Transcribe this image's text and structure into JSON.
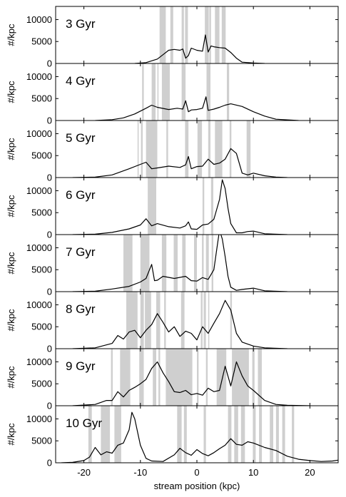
{
  "chart_data": [
    {
      "type": "line",
      "label": "3 Gyr",
      "ylabel": "#/kpc",
      "xlim": [
        -25,
        25
      ],
      "ylim": [
        0,
        13000
      ],
      "yticks": [
        0,
        5000,
        10000
      ],
      "shaded_bands": [
        [
          -6.6,
          -5.5
        ],
        [
          -4.7,
          -4.2
        ],
        [
          -2.7,
          -2.3
        ],
        [
          -2.1,
          -1.6
        ],
        [
          1.4,
          2.1
        ],
        [
          2.2,
          2.5
        ],
        [
          3.2,
          4.0
        ],
        [
          4.4,
          5.1
        ]
      ],
      "x": [
        -11,
        -9,
        -7,
        -6,
        -5,
        -4,
        -3,
        -2.5,
        -2,
        -1.5,
        -1,
        0,
        1,
        1.5,
        2,
        2.5,
        3,
        4,
        5,
        6,
        7,
        8,
        10,
        12
      ],
      "y": [
        0,
        200,
        1000,
        2000,
        3000,
        3200,
        3000,
        3300,
        1200,
        1800,
        3500,
        3000,
        2800,
        6500,
        2600,
        4000,
        3800,
        3600,
        3500,
        2500,
        1200,
        300,
        100,
        0
      ]
    },
    {
      "type": "line",
      "label": "4 Gyr",
      "ylabel": "#/kpc",
      "xlim": [
        -25,
        25
      ],
      "ylim": [
        0,
        13000
      ],
      "yticks": [
        0,
        5000,
        10000
      ],
      "shaded_bands": [
        [
          -9.7,
          -9.4
        ],
        [
          -8.0,
          -7.3
        ],
        [
          -7.0,
          -6.8
        ],
        [
          -6.2,
          -4.8
        ],
        [
          -2.7,
          -2.0
        ],
        [
          1.7,
          2.4
        ],
        [
          5.3,
          5.7
        ]
      ],
      "x": [
        -18,
        -15,
        -13,
        -11,
        -9,
        -8,
        -7,
        -5,
        -3.5,
        -2.5,
        -2,
        -1.5,
        -1,
        0,
        1,
        1.6,
        2,
        3,
        4,
        5,
        6,
        8,
        10,
        12,
        14,
        18
      ],
      "y": [
        0,
        200,
        600,
        1500,
        2800,
        3500,
        3000,
        2500,
        2800,
        2600,
        4500,
        2000,
        2400,
        2500,
        2800,
        5400,
        2300,
        2600,
        3000,
        3500,
        3800,
        3200,
        2000,
        1000,
        300,
        0
      ]
    },
    {
      "type": "line",
      "label": "5 Gyr",
      "ylabel": "#/kpc",
      "xlim": [
        -25,
        25
      ],
      "ylim": [
        0,
        13000
      ],
      "yticks": [
        0,
        5000,
        10000
      ],
      "shaded_bands": [
        [
          -10.5,
          -10.3
        ],
        [
          -9.9,
          -9.6
        ],
        [
          -9.0,
          -7.0
        ],
        [
          -5.4,
          -5.1
        ],
        [
          -2.1,
          -1.5
        ],
        [
          0.1,
          0.9
        ],
        [
          2.0,
          2.4
        ],
        [
          3.2,
          4.5
        ],
        [
          5.8,
          6.1
        ],
        [
          8.8,
          9.5
        ]
      ],
      "x": [
        -22,
        -18,
        -15,
        -12,
        -10,
        -9,
        -8,
        -7,
        -5,
        -3,
        -2,
        -1.5,
        -1,
        0,
        1,
        2,
        3,
        4,
        5,
        6,
        7,
        8,
        9,
        10,
        12,
        14,
        16
      ],
      "y": [
        0,
        100,
        600,
        2000,
        3000,
        3500,
        2000,
        2200,
        2600,
        2300,
        2900,
        4800,
        2000,
        2500,
        2600,
        4200,
        3000,
        3300,
        4200,
        6600,
        5500,
        1000,
        600,
        1000,
        400,
        100,
        0
      ]
    },
    {
      "type": "line",
      "label": "6 Gyr",
      "ylabel": "#/kpc",
      "xlim": [
        -25,
        25
      ],
      "ylim": [
        0,
        13000
      ],
      "yticks": [
        0,
        5000,
        10000
      ],
      "shaded_bands": [
        [
          -8.7,
          -7.2
        ],
        [
          1.0,
          1.3
        ],
        [
          2.5,
          2.9
        ]
      ],
      "x": [
        -22,
        -18,
        -15,
        -12,
        -10,
        -9,
        -8,
        -7,
        -5,
        -3,
        -2,
        -1.5,
        -1,
        0,
        1,
        2,
        3,
        4,
        4.5,
        5,
        5.5,
        6,
        7,
        8,
        9,
        10,
        12,
        16
      ],
      "y": [
        0,
        100,
        500,
        1300,
        2200,
        3600,
        2000,
        2500,
        1800,
        1500,
        2000,
        2900,
        1300,
        1200,
        2200,
        2400,
        3500,
        8000,
        12500,
        10500,
        6000,
        2500,
        400,
        400,
        700,
        800,
        200,
        0
      ]
    },
    {
      "type": "line",
      "label": "7 Gyr",
      "ylabel": "#/kpc",
      "xlim": [
        -25,
        25
      ],
      "ylim": [
        0,
        13000
      ],
      "yticks": [
        0,
        5000,
        10000
      ],
      "shaded_bands": [
        [
          -13.0,
          -11.4
        ],
        [
          -10.0,
          -8.4
        ],
        [
          -6.2,
          -5.4
        ],
        [
          -4.1,
          -3.4
        ],
        [
          -2.6,
          -2.0
        ],
        [
          -0.5,
          0.0
        ],
        [
          0.9,
          1.2
        ],
        [
          1.6,
          2.1
        ],
        [
          2.6,
          2.9
        ]
      ],
      "x": [
        -22,
        -18,
        -15,
        -12,
        -10,
        -9,
        -8,
        -7.5,
        -7,
        -6,
        -4,
        -2,
        -1,
        0,
        1,
        2,
        3,
        3.5,
        4,
        4.5,
        5,
        5.5,
        6,
        7,
        8,
        10,
        12,
        16
      ],
      "y": [
        0,
        100,
        600,
        1200,
        2200,
        3000,
        6200,
        2500,
        2600,
        3500,
        3000,
        3500,
        2500,
        2400,
        3200,
        2800,
        5000,
        9500,
        14000,
        12000,
        8000,
        3500,
        1000,
        300,
        500,
        800,
        200,
        0
      ]
    },
    {
      "type": "line",
      "label": "8 Gyr",
      "ylabel": "#/kpc",
      "xlim": [
        -25,
        25
      ],
      "ylim": [
        0,
        13000
      ],
      "yticks": [
        0,
        5000,
        10000
      ],
      "shaded_bands": [
        [
          -12.5,
          -10.5
        ],
        [
          -10.0,
          -9.4
        ],
        [
          -9.2,
          -8.1
        ],
        [
          -7.2,
          -6.5
        ],
        [
          -5.8,
          -5.5
        ],
        [
          -2.8,
          -2.2
        ],
        [
          0.7,
          1.0
        ],
        [
          1.2,
          1.6
        ],
        [
          2.0,
          2.2
        ],
        [
          5.9,
          6.2
        ]
      ],
      "x": [
        -22,
        -18,
        -15,
        -14,
        -13,
        -12,
        -11,
        -10,
        -9,
        -8,
        -7,
        -6,
        -5,
        -4,
        -3,
        -2,
        -1,
        0,
        1,
        2,
        3,
        4,
        5,
        6,
        7,
        8,
        10,
        12,
        16
      ],
      "y": [
        0,
        200,
        1200,
        3000,
        2200,
        3800,
        4200,
        2500,
        4200,
        5500,
        8000,
        6000,
        3800,
        5000,
        2800,
        4000,
        3500,
        2000,
        5000,
        3500,
        5800,
        8000,
        11000,
        8800,
        3500,
        1500,
        600,
        200,
        0
      ]
    },
    {
      "type": "line",
      "label": "9 Gyr",
      "ylabel": "#/kpc",
      "xlim": [
        -25,
        25
      ],
      "ylim": [
        0,
        13000
      ],
      "yticks": [
        0,
        5000,
        10000
      ],
      "shaded_bands": [
        [
          -15.2,
          -14.9
        ],
        [
          -13.6,
          -11.8
        ],
        [
          -10.2,
          -9.4
        ],
        [
          -7.8,
          -7.2
        ],
        [
          -6.8,
          -6.5
        ],
        [
          -5.5,
          -0.8
        ],
        [
          0.0,
          0.3
        ],
        [
          1.6,
          1.9
        ],
        [
          3.5,
          5.2
        ],
        [
          6.2,
          9.2
        ],
        [
          9.8,
          10.2
        ],
        [
          10.8,
          11.5
        ]
      ],
      "x": [
        -22,
        -18,
        -16,
        -15,
        -14,
        -13,
        -12,
        -11,
        -10,
        -9,
        -8,
        -7,
        -6,
        -5,
        -4,
        -3,
        -2,
        -1,
        0,
        1,
        2,
        3,
        4,
        5,
        6,
        7,
        8,
        9,
        10,
        12,
        14,
        16,
        20
      ],
      "y": [
        0,
        300,
        1200,
        1200,
        3200,
        2000,
        3500,
        4200,
        5000,
        6000,
        8500,
        10000,
        7500,
        5500,
        3200,
        3000,
        3500,
        2500,
        2800,
        2400,
        4000,
        3200,
        3500,
        9000,
        4500,
        10000,
        6800,
        4500,
        3500,
        1200,
        300,
        100,
        0
      ]
    },
    {
      "type": "line",
      "label": "10 Gyr",
      "ylabel": "#/kpc",
      "xlabel": "stream position (kpc)",
      "xlim": [
        -25,
        25
      ],
      "ylim": [
        0,
        13000
      ],
      "yticks": [
        0,
        5000,
        10000
      ],
      "xticks": [
        -20,
        -10,
        0,
        10,
        20
      ],
      "shaded_bands": [
        [
          -19.2,
          -18.6
        ],
        [
          -17.0,
          -15.4
        ],
        [
          -14.6,
          -13.4
        ],
        [
          -3.5,
          -2.7
        ],
        [
          -2.3,
          -1.8
        ],
        [
          1.2,
          1.6
        ],
        [
          5.5,
          6.1
        ],
        [
          6.6,
          7.3
        ],
        [
          7.8,
          8.5
        ],
        [
          9.9,
          10.4
        ],
        [
          11.0,
          11.5
        ],
        [
          12.9,
          13.5
        ],
        [
          14.0,
          14.5
        ],
        [
          15.1,
          15.6
        ],
        [
          16.8,
          17.2
        ]
      ],
      "x": [
        -24,
        -22,
        -20,
        -19,
        -18,
        -17,
        -16,
        -15,
        -14,
        -13,
        -12,
        -11.5,
        -11,
        -10,
        -9,
        -8,
        -6,
        -4,
        -3,
        -2,
        -1,
        0,
        1,
        2,
        3,
        4,
        5,
        6,
        7,
        8,
        9,
        10,
        11,
        12,
        14,
        16,
        18,
        20,
        22,
        24,
        25
      ],
      "y": [
        0,
        100,
        500,
        1300,
        3500,
        1800,
        2500,
        2200,
        4000,
        4500,
        7500,
        11500,
        10000,
        4000,
        1000,
        400,
        300,
        1800,
        3300,
        2300,
        1700,
        3000,
        2100,
        1600,
        2300,
        3200,
        4000,
        5500,
        4200,
        4000,
        4800,
        4500,
        4000,
        3500,
        2800,
        1500,
        800,
        500,
        300,
        400,
        600
      ]
    }
  ]
}
